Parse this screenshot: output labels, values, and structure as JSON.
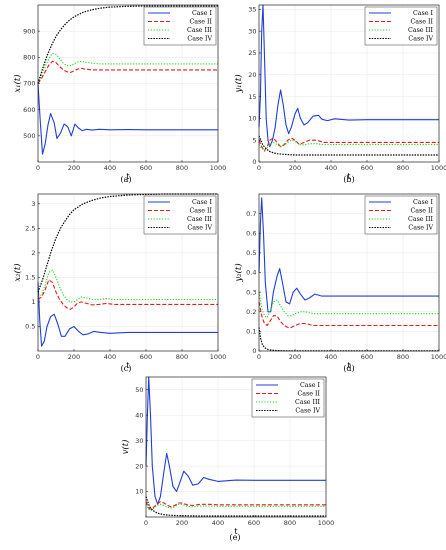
{
  "colors": {
    "case1": "#1f3fd6",
    "case2": "#e41a1c",
    "case3": "#1ed41e",
    "case4": "#000000"
  },
  "chart_data": [
    {
      "type": "line",
      "caption": "(a)",
      "xlabel": "t",
      "ylabel": "x₁(t)",
      "xlim": [
        0,
        1000
      ],
      "ylim": [
        400,
        1000
      ],
      "xticks": [
        0,
        200,
        400,
        600,
        800,
        1000
      ],
      "yticks": [
        500,
        600,
        700,
        800,
        900
      ],
      "legend": "top-right",
      "grid": true,
      "series": [
        {
          "name": "Case I",
          "x": [
            0,
            12,
            25,
            40,
            55,
            70,
            90,
            105,
            125,
            145,
            165,
            185,
            205,
            225,
            245,
            270,
            300,
            340,
            400,
            500,
            600,
            700,
            800,
            900,
            1000
          ],
          "y": [
            700,
            560,
            430,
            470,
            540,
            585,
            550,
            490,
            510,
            545,
            535,
            500,
            545,
            530,
            520,
            525,
            522,
            525,
            523,
            524,
            523,
            523,
            523,
            523,
            523
          ]
        },
        {
          "name": "Case II",
          "x": [
            0,
            20,
            40,
            60,
            80,
            100,
            120,
            140,
            160,
            180,
            200,
            220,
            240,
            260,
            300,
            350,
            400,
            500,
            600,
            700,
            800,
            900,
            1000
          ],
          "y": [
            700,
            720,
            745,
            770,
            785,
            780,
            765,
            752,
            745,
            742,
            748,
            755,
            758,
            755,
            752,
            752,
            752,
            752,
            752,
            752,
            752,
            752,
            752
          ]
        },
        {
          "name": "Case III",
          "x": [
            0,
            20,
            40,
            60,
            80,
            100,
            120,
            140,
            160,
            180,
            200,
            220,
            240,
            260,
            300,
            350,
            400,
            500,
            600,
            700,
            800,
            900,
            1000
          ],
          "y": [
            700,
            730,
            765,
            795,
            815,
            812,
            795,
            778,
            768,
            768,
            775,
            782,
            785,
            782,
            778,
            775,
            775,
            775,
            775,
            775,
            775,
            775,
            775
          ]
        },
        {
          "name": "Case IV",
          "x": [
            0,
            25,
            50,
            75,
            100,
            125,
            150,
            175,
            200,
            250,
            300,
            350,
            400,
            500,
            600,
            700,
            800,
            900,
            1000
          ],
          "y": [
            700,
            755,
            805,
            846,
            880,
            905,
            926,
            942,
            955,
            972,
            982,
            988,
            992,
            995,
            996,
            996,
            996,
            996,
            996
          ]
        }
      ]
    },
    {
      "type": "line",
      "caption": "(b)",
      "xlabel": "t",
      "ylabel": "y₁(t)",
      "xlim": [
        0,
        1000
      ],
      "ylim": [
        0,
        36
      ],
      "xticks": [
        0,
        200,
        400,
        600,
        800,
        1000
      ],
      "yticks": [
        0,
        5,
        10,
        15,
        20,
        25,
        30,
        35
      ],
      "legend": "top-right",
      "grid": true,
      "series": [
        {
          "name": "Case I",
          "x": [
            0,
            8,
            15,
            22,
            30,
            40,
            50,
            60,
            75,
            90,
            105,
            120,
            135,
            150,
            165,
            180,
            200,
            215,
            230,
            250,
            270,
            300,
            330,
            350,
            380,
            420,
            500,
            600,
            700,
            800,
            900,
            1000
          ],
          "y": [
            8,
            15,
            30,
            36,
            25,
            10,
            5,
            3.5,
            5,
            8,
            13,
            16.5,
            13,
            8.5,
            6.5,
            8,
            11,
            12.3,
            10,
            8.5,
            9,
            10.5,
            10.7,
            9.8,
            9.5,
            9.9,
            9.6,
            9.7,
            9.7,
            9.7,
            9.7,
            9.7
          ]
        },
        {
          "name": "Case II",
          "x": [
            0,
            15,
            30,
            45,
            60,
            80,
            100,
            120,
            140,
            160,
            180,
            200,
            225,
            250,
            280,
            320,
            360,
            420,
            500,
            600,
            700,
            800,
            900,
            1000
          ],
          "y": [
            5,
            3.5,
            2.5,
            3.5,
            5,
            5.5,
            4.5,
            3.5,
            4,
            5,
            5.5,
            5,
            4,
            4.5,
            5,
            5,
            4.5,
            4.5,
            4.5,
            4.5,
            4.5,
            4.5,
            4.5,
            4.5
          ]
        },
        {
          "name": "Case III",
          "x": [
            0,
            15,
            30,
            45,
            60,
            80,
            100,
            120,
            140,
            160,
            180,
            200,
            225,
            250,
            280,
            320,
            360,
            420,
            500,
            600,
            700,
            800,
            900,
            1000
          ],
          "y": [
            4,
            3,
            2.8,
            3.2,
            4,
            4.5,
            4,
            3.5,
            3.8,
            4.5,
            5,
            4.8,
            4,
            3.9,
            4.2,
            4.2,
            4,
            4,
            4,
            4,
            4,
            4,
            4,
            4
          ]
        },
        {
          "name": "Case IV",
          "x": [
            0,
            20,
            40,
            60,
            80,
            100,
            130,
            160,
            200,
            300,
            500,
            700,
            1000
          ],
          "y": [
            6,
            4,
            3,
            2.4,
            2.1,
            1.9,
            1.8,
            1.7,
            1.6,
            1.6,
            1.6,
            1.6,
            1.6
          ]
        }
      ]
    },
    {
      "type": "line",
      "caption": "(c)",
      "xlabel": "t",
      "ylabel": "x₂(t)",
      "xlim": [
        0,
        1000
      ],
      "ylim": [
        0,
        3.2
      ],
      "xticks": [
        0,
        200,
        400,
        600,
        800,
        1000
      ],
      "yticks": [
        0.5,
        1,
        1.5,
        2,
        2.5,
        3
      ],
      "legend": "top-right",
      "grid": true,
      "series": [
        {
          "name": "Case I",
          "x": [
            0,
            10,
            20,
            35,
            50,
            70,
            90,
            110,
            130,
            150,
            175,
            200,
            225,
            250,
            280,
            310,
            350,
            400,
            500,
            600,
            700,
            800,
            900,
            1000
          ],
          "y": [
            1.4,
            0.6,
            0.1,
            0.2,
            0.5,
            0.7,
            0.75,
            0.55,
            0.3,
            0.3,
            0.45,
            0.5,
            0.4,
            0.33,
            0.35,
            0.4,
            0.38,
            0.36,
            0.38,
            0.38,
            0.38,
            0.38,
            0.38,
            0.38
          ]
        },
        {
          "name": "Case II",
          "x": [
            0,
            20,
            40,
            60,
            80,
            100,
            120,
            140,
            160,
            180,
            200,
            220,
            240,
            270,
            300,
            340,
            380,
            420,
            500,
            600,
            700,
            800,
            900,
            1000
          ],
          "y": [
            1.05,
            1.1,
            1.25,
            1.45,
            1.4,
            1.2,
            1.05,
            0.95,
            0.88,
            0.85,
            0.9,
            0.98,
            1.0,
            0.97,
            0.94,
            0.95,
            0.97,
            0.95,
            0.95,
            0.95,
            0.95,
            0.95,
            0.95,
            0.95
          ]
        },
        {
          "name": "Case III",
          "x": [
            0,
            20,
            40,
            60,
            80,
            100,
            120,
            140,
            160,
            180,
            200,
            220,
            240,
            270,
            300,
            340,
            380,
            420,
            500,
            600,
            700,
            800,
            900,
            1000
          ],
          "y": [
            1.1,
            1.15,
            1.35,
            1.6,
            1.65,
            1.5,
            1.3,
            1.15,
            1.05,
            1.0,
            1.0,
            1.05,
            1.1,
            1.08,
            1.05,
            1.05,
            1.07,
            1.05,
            1.05,
            1.05,
            1.05,
            1.05,
            1.05,
            1.05
          ]
        },
        {
          "name": "Case IV",
          "x": [
            0,
            25,
            50,
            75,
            100,
            125,
            150,
            175,
            200,
            250,
            300,
            350,
            400,
            500,
            600,
            700,
            800,
            900,
            1000
          ],
          "y": [
            1.2,
            1.45,
            1.75,
            2.05,
            2.3,
            2.5,
            2.65,
            2.78,
            2.88,
            3.0,
            3.07,
            3.12,
            3.15,
            3.18,
            3.19,
            3.2,
            3.2,
            3.2,
            3.2
          ]
        }
      ]
    },
    {
      "type": "line",
      "caption": "(d)",
      "xlabel": "t",
      "ylabel": "y₂(t)",
      "xlim": [
        0,
        1000
      ],
      "ylim": [
        0,
        0.8
      ],
      "xticks": [
        0,
        200,
        400,
        600,
        800,
        1000
      ],
      "yticks": [
        0,
        0.1,
        0.2,
        0.3,
        0.4,
        0.5,
        0.6,
        0.7
      ],
      "legend": "top-right",
      "grid": true,
      "series": [
        {
          "name": "Case I",
          "x": [
            0,
            8,
            15,
            25,
            35,
            50,
            65,
            80,
            100,
            115,
            130,
            150,
            170,
            190,
            210,
            230,
            255,
            280,
            310,
            350,
            400,
            500,
            600,
            700,
            800,
            900,
            1000
          ],
          "y": [
            0.4,
            0.65,
            0.78,
            0.6,
            0.35,
            0.2,
            0.2,
            0.3,
            0.38,
            0.42,
            0.35,
            0.25,
            0.24,
            0.3,
            0.32,
            0.29,
            0.26,
            0.27,
            0.29,
            0.28,
            0.28,
            0.28,
            0.28,
            0.28,
            0.28,
            0.28,
            0.28
          ]
        },
        {
          "name": "Case II",
          "x": [
            0,
            15,
            30,
            45,
            60,
            80,
            100,
            120,
            140,
            160,
            180,
            200,
            230,
            260,
            300,
            350,
            400,
            500,
            600,
            700,
            800,
            900,
            1000
          ],
          "y": [
            0.25,
            0.18,
            0.14,
            0.13,
            0.15,
            0.18,
            0.18,
            0.15,
            0.13,
            0.12,
            0.12,
            0.13,
            0.14,
            0.14,
            0.13,
            0.13,
            0.13,
            0.13,
            0.13,
            0.13,
            0.13,
            0.13,
            0.13
          ]
        },
        {
          "name": "Case III",
          "x": [
            0,
            15,
            30,
            45,
            60,
            80,
            100,
            120,
            140,
            160,
            180,
            200,
            230,
            260,
            300,
            350,
            400,
            500,
            600,
            700,
            800,
            900,
            1000
          ],
          "y": [
            0.3,
            0.22,
            0.18,
            0.17,
            0.2,
            0.25,
            0.26,
            0.23,
            0.2,
            0.18,
            0.18,
            0.19,
            0.2,
            0.2,
            0.19,
            0.19,
            0.19,
            0.19,
            0.19,
            0.19,
            0.19,
            0.19,
            0.19
          ]
        },
        {
          "name": "Case IV",
          "x": [
            0,
            10,
            20,
            35,
            50,
            70,
            100,
            150,
            200,
            300,
            500,
            1000
          ],
          "y": [
            0.12,
            0.06,
            0.03,
            0.015,
            0.008,
            0.004,
            0.002,
            0.001,
            0.001,
            0.001,
            0.001,
            0.001
          ]
        }
      ]
    },
    {
      "type": "line",
      "caption": "(e)",
      "xlabel": "t",
      "ylabel": "v(t)",
      "xlim": [
        0,
        1000
      ],
      "ylim": [
        0,
        55
      ],
      "xticks": [
        0,
        200,
        400,
        600,
        800,
        1000
      ],
      "yticks": [
        10,
        20,
        30,
        40,
        50
      ],
      "legend": "top-right",
      "grid": true,
      "series": [
        {
          "name": "Case I",
          "x": [
            0,
            8,
            15,
            25,
            35,
            50,
            65,
            80,
            100,
            115,
            130,
            150,
            170,
            190,
            210,
            235,
            260,
            290,
            320,
            350,
            400,
            500,
            600,
            700,
            800,
            900,
            1000
          ],
          "y": [
            20,
            40,
            55,
            40,
            20,
            8,
            5,
            8,
            18,
            25,
            20,
            12,
            10,
            14,
            18,
            16,
            12.5,
            13,
            15.5,
            14.8,
            14,
            14.5,
            14.4,
            14.4,
            14.4,
            14.4,
            14.4
          ]
        },
        {
          "name": "Case II",
          "x": [
            0,
            15,
            30,
            45,
            60,
            80,
            100,
            120,
            140,
            160,
            180,
            200,
            230,
            260,
            300,
            350,
            400,
            500,
            600,
            700,
            800,
            900,
            1000
          ],
          "y": [
            6,
            3.5,
            3,
            4,
            5,
            6,
            5.5,
            4.5,
            4,
            4.5,
            5.5,
            5.5,
            4.8,
            4.5,
            5,
            5,
            4.8,
            4.8,
            4.8,
            4.8,
            4.8,
            4.8,
            4.8
          ]
        },
        {
          "name": "Case III",
          "x": [
            0,
            15,
            30,
            45,
            60,
            80,
            100,
            120,
            140,
            160,
            180,
            200,
            230,
            260,
            300,
            350,
            400,
            500,
            600,
            700,
            800,
            900,
            1000
          ],
          "y": [
            5,
            3,
            2.5,
            3.5,
            4.5,
            5,
            4.5,
            3.8,
            3.5,
            4,
            5,
            5,
            4.2,
            4,
            4.3,
            4.3,
            4.2,
            4.2,
            4.2,
            4.2,
            4.2,
            4.2,
            4.2
          ]
        },
        {
          "name": "Case IV",
          "x": [
            0,
            20,
            40,
            60,
            80,
            100,
            130,
            160,
            200,
            300,
            500,
            700,
            1000
          ],
          "y": [
            8,
            4,
            2.5,
            1.6,
            1.2,
            0.9,
            0.7,
            0.6,
            0.5,
            0.4,
            0.4,
            0.4,
            0.4
          ]
        }
      ]
    }
  ]
}
